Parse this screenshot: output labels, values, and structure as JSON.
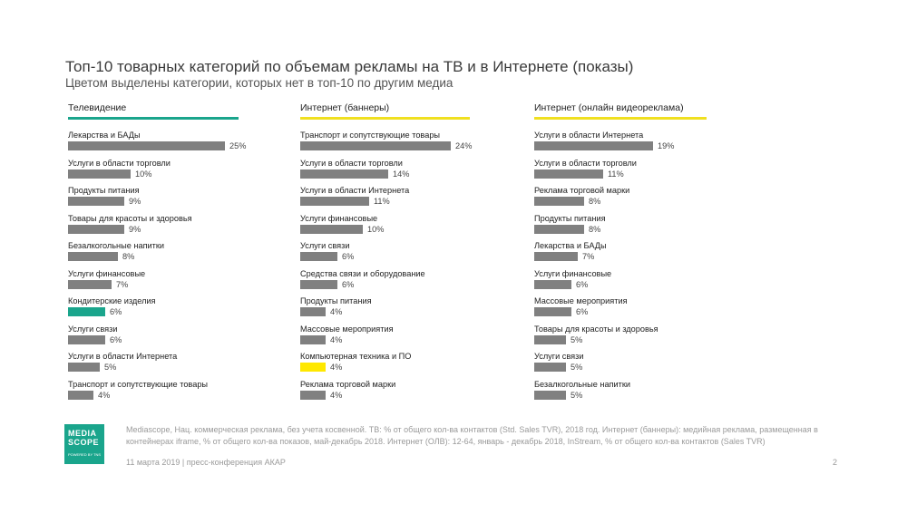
{
  "title": "Топ-10 товарных категорий по объемам рекламы на ТВ и в Интернете (показы)",
  "subtitle": "Цветом выделены категории, которых нет в топ-10 по другим медиа",
  "colors": {
    "bar": "#808080",
    "tv_line": "#1aa58c",
    "net_line": "#f0e020",
    "highlight_teal": "#1aa58c",
    "highlight_yellow": "#ffe800"
  },
  "chart_data": [
    {
      "type": "bar",
      "title": "Телевидение",
      "unit": "%",
      "categories": [
        "Лекарства и БАДы",
        "Услуги в области торговли",
        "Продукты питания",
        "Товары для красоты и здоровья",
        "Безалкогольные напитки",
        "Услуги финансовые",
        "Кондитерские изделия",
        "Услуги связи",
        "Услуги в области Интернета",
        "Транспорт и сопутствующие товары"
      ],
      "values": [
        25,
        10,
        9,
        9,
        8,
        7,
        6,
        6,
        5,
        4
      ],
      "labels": [
        "25%",
        "10%",
        "9%",
        "9%",
        "8%",
        "7%",
        "6%",
        "6%",
        "5%",
        "4%"
      ],
      "highlighted": [
        "Кондитерские изделия"
      ]
    },
    {
      "type": "bar",
      "title": "Интернет (баннеры)",
      "unit": "%",
      "categories": [
        "Транспорт и сопутствующие товары",
        "Услуги в области торговли",
        "Услуги в области Интернета",
        "Услуги финансовые",
        "Услуги связи",
        "Средства связи и оборудование",
        "Продукты питания",
        "Массовые мероприятия",
        "Компьютерная техника и ПО",
        "Реклама торговой марки"
      ],
      "values": [
        24,
        14,
        11,
        10,
        6,
        6,
        4,
        4,
        4,
        4
      ],
      "labels": [
        "24%",
        "14%",
        "11%",
        "10%",
        "6%",
        "6%",
        "4%",
        "4%",
        "4%",
        "4%"
      ],
      "highlighted": [
        "Компьютерная техника и ПО"
      ]
    },
    {
      "type": "bar",
      "title": "Интернет (онлайн видеореклама)",
      "unit": "%",
      "categories": [
        "Услуги в области Интернета",
        "Услуги в области торговли",
        "Реклама торговой марки",
        "Продукты питания",
        "Лекарства и БАДы",
        "Услуги финансовые",
        "Массовые мероприятия",
        "Товары для красоты и здоровья",
        "Услуги связи",
        "Безалкогольные напитки"
      ],
      "values": [
        19,
        11,
        8,
        8,
        7,
        6,
        6,
        5,
        5,
        5
      ],
      "labels": [
        "19%",
        "11%",
        "8%",
        "8%",
        "7%",
        "6%",
        "6%",
        "5%",
        "5%",
        "5%"
      ],
      "highlighted": []
    }
  ],
  "logo": {
    "text_line1": "MEDIA",
    "text_line2": "SCOPE",
    "tagline": "POWERED BY TNS"
  },
  "footnote": "Mediascope, Нац. коммерческая реклама, без учета косвенной. ТВ: % от общего кол-ва контактов (Std. Sales TVR), 2018 год. Интернет (баннеры): медийная реклама, размещенная в контейнерах iframe, % от общего кол-ва показов, май-декабрь 2018. Интернет (ОЛВ): 12-64, январь - декабрь 2018, InStream, % от общего кол-ва контактов (Sales TVR)",
  "footer_left": "11 марта 2019 | пресс-конференция АКАР",
  "page_number": "2"
}
